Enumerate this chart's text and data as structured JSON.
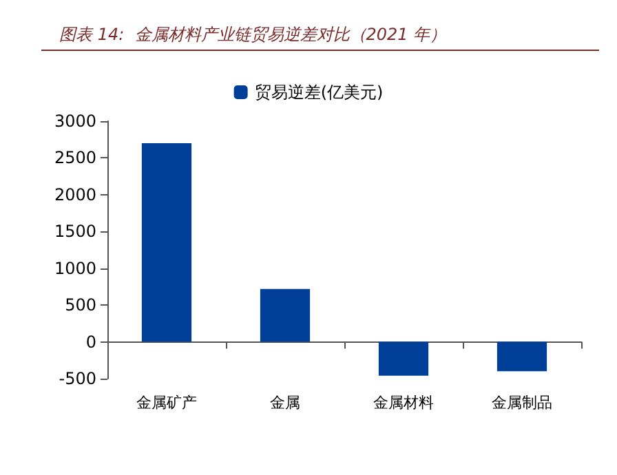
{
  "chart_data": {
    "type": "bar",
    "title": "图表 14:  金属材料产业链贸易逆差对比（2021 年）",
    "categories": [
      "金属矿产",
      "金属",
      "金属材料",
      "金属制品"
    ],
    "series": [
      {
        "name": "贸易逆差(亿美元)",
        "color": "#003f98",
        "values": [
          2700,
          720,
          -460,
          -400
        ]
      }
    ],
    "ylim": [
      -500,
      3000
    ],
    "yticks": [
      -500,
      0,
      500,
      1000,
      1500,
      2000,
      2500,
      3000
    ],
    "legend": "top"
  }
}
